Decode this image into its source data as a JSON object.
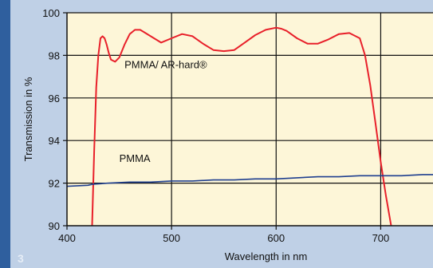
{
  "chart_data": {
    "type": "line",
    "xlabel": "Wavelength in nm",
    "ylabel": "Transmission in %",
    "xlim": [
      400,
      750
    ],
    "ylim": [
      90,
      100
    ],
    "x_ticks": [
      400,
      500,
      600,
      700
    ],
    "y_ticks": [
      90,
      92,
      94,
      96,
      98,
      100
    ],
    "grid": true,
    "series": [
      {
        "name": "PMMA/ AR-hard®",
        "color": "#e8202a",
        "x": [
          424,
          426,
          428,
          430,
          432,
          434,
          436,
          438,
          440,
          442,
          446,
          450,
          455,
          460,
          465,
          470,
          475,
          480,
          490,
          500,
          510,
          520,
          530,
          540,
          550,
          560,
          570,
          580,
          590,
          600,
          605,
          610,
          620,
          630,
          640,
          650,
          660,
          670,
          680,
          685,
          690,
          695,
          700,
          705,
          710
        ],
        "values": [
          90.0,
          93.5,
          96.5,
          98.0,
          98.8,
          98.9,
          98.8,
          98.5,
          98.1,
          97.8,
          97.7,
          97.9,
          98.5,
          99.0,
          99.2,
          99.2,
          99.05,
          98.9,
          98.6,
          98.8,
          99.0,
          98.9,
          98.55,
          98.25,
          98.2,
          98.25,
          98.6,
          98.95,
          99.2,
          99.3,
          99.25,
          99.15,
          98.8,
          98.55,
          98.55,
          98.75,
          99.0,
          99.05,
          98.8,
          98.0,
          96.6,
          94.8,
          93.0,
          91.4,
          90.0
        ]
      },
      {
        "name": "PMMA",
        "color": "#1f3f8f",
        "x": [
          400,
          420,
          425,
          440,
          460,
          480,
          500,
          520,
          540,
          560,
          580,
          600,
          620,
          640,
          660,
          680,
          700,
          720,
          740,
          750
        ],
        "values": [
          91.85,
          91.9,
          91.95,
          92.0,
          92.05,
          92.05,
          92.1,
          92.1,
          92.15,
          92.15,
          92.2,
          92.2,
          92.25,
          92.3,
          92.3,
          92.35,
          92.35,
          92.35,
          92.4,
          92.4
        ]
      }
    ],
    "annotations": [
      {
        "text": "PMMA/ AR-hard®",
        "x": 455,
        "y": 97.4
      },
      {
        "text": "PMMA",
        "x": 450,
        "y": 93.0
      }
    ]
  },
  "colors": {
    "plot_bg": "#fdf6d8",
    "page_bg": "#bfd0e6",
    "strip": "#2f5f9e"
  },
  "page_number": "3"
}
